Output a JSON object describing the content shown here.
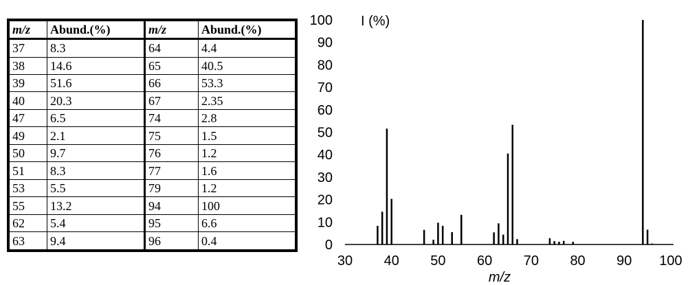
{
  "table": {
    "headers": [
      "m/z",
      "Abund.(%)",
      "m/z",
      "Abund.(%)"
    ],
    "rows": [
      [
        "37",
        "8.3",
        "64",
        "4.4"
      ],
      [
        "38",
        "14.6",
        "65",
        "40.5"
      ],
      [
        "39",
        "51.6",
        "66",
        "53.3"
      ],
      [
        "40",
        "20.3",
        "67",
        "2.35"
      ],
      [
        "47",
        "6.5",
        "74",
        "2.8"
      ],
      [
        "49",
        "2.1",
        "75",
        "1.5"
      ],
      [
        "50",
        "9.7",
        "76",
        "1.2"
      ],
      [
        "51",
        "8.3",
        "77",
        "1.6"
      ],
      [
        "53",
        "5.5",
        "79",
        "1.2"
      ],
      [
        "55",
        "13.2",
        "94",
        "100"
      ],
      [
        "62",
        "5.4",
        "95",
        "6.6"
      ],
      [
        "63",
        "9.4",
        "96",
        "0.4"
      ]
    ]
  },
  "chart_data": {
    "type": "bar",
    "xlabel": "m/z",
    "ylabel": "I (%)",
    "xlim": [
      30,
      100
    ],
    "ylim": [
      0,
      100
    ],
    "xticks": [
      "30",
      "40",
      "50",
      "60",
      "70",
      "80",
      "90",
      "100"
    ],
    "yticks": [
      "0",
      "10",
      "20",
      "30",
      "40",
      "50",
      "60",
      "70",
      "80",
      "90",
      "100"
    ],
    "grid": false,
    "series": [
      {
        "x": [
          37,
          38,
          39,
          40,
          47,
          49,
          50,
          51,
          53,
          55,
          62,
          63,
          64,
          65,
          66,
          67,
          74,
          75,
          76,
          77,
          79,
          94,
          95,
          96
        ],
        "values": [
          8.3,
          14.6,
          51.6,
          20.3,
          6.5,
          2.1,
          9.7,
          8.3,
          5.5,
          13.2,
          5.4,
          9.4,
          4.4,
          40.5,
          53.3,
          2.35,
          2.8,
          1.5,
          1.2,
          1.6,
          1.2,
          100,
          6.6,
          0.4
        ]
      }
    ]
  }
}
